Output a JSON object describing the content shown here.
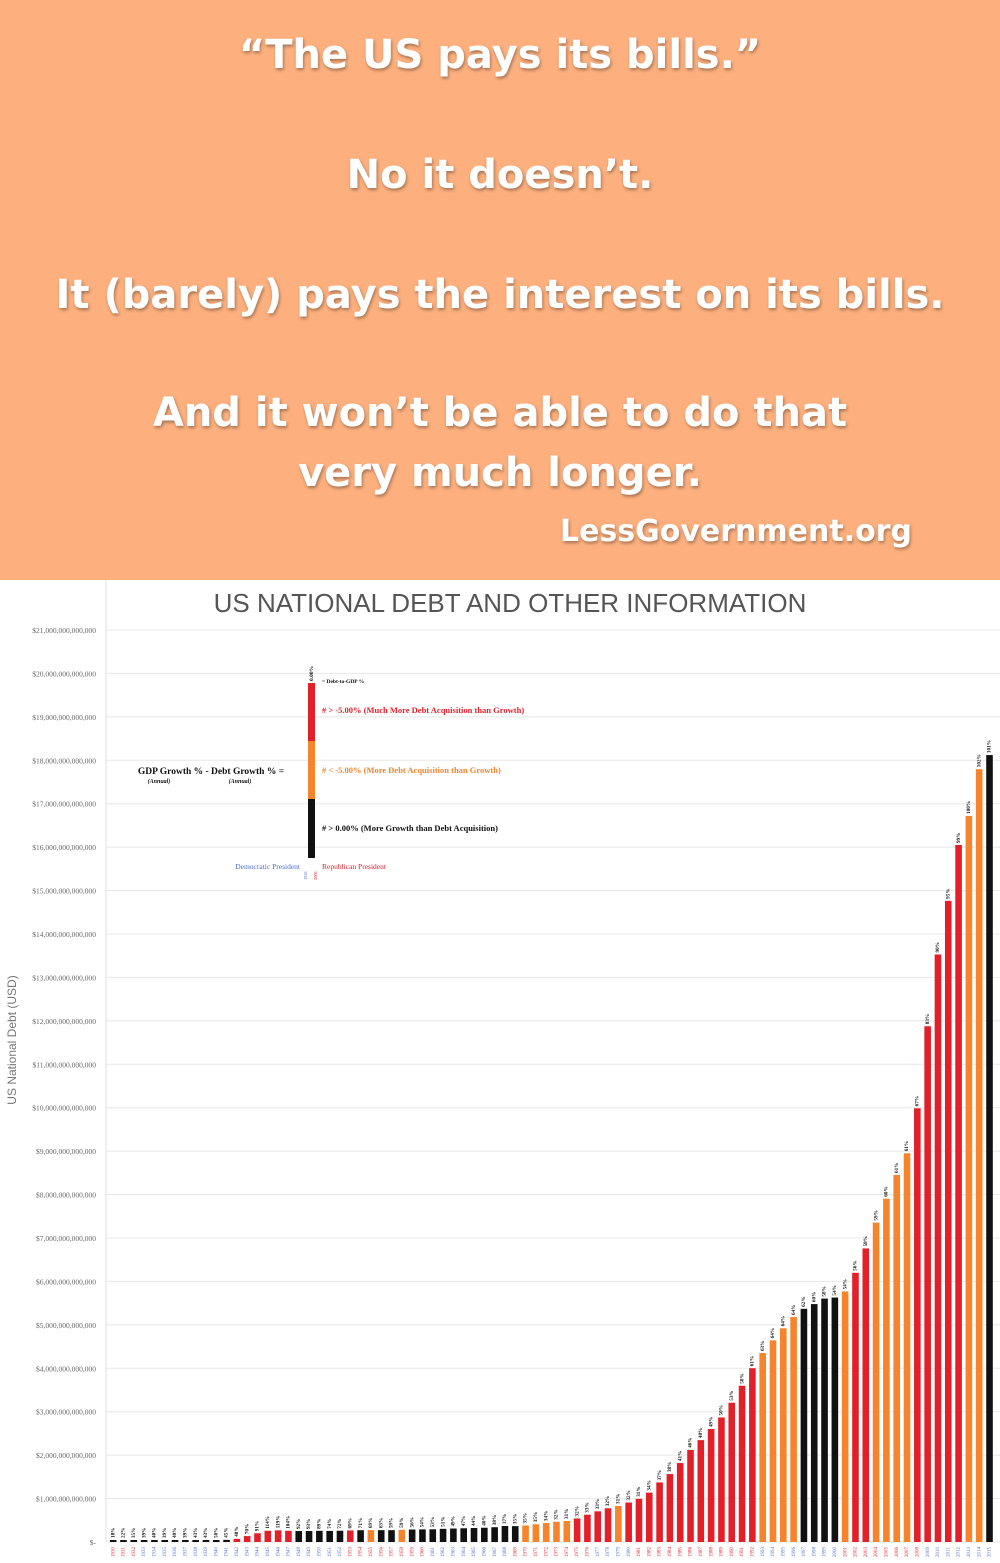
{
  "banner": {
    "line1": "“The US pays its bills.”",
    "line2": "No it doesn’t.",
    "line3": "It (barely) pays the interest on its bills.",
    "line4a": "And it won’t be able to do that",
    "line4b": "very much longer.",
    "brand": "LessGovernment.org",
    "bg_color": "#fdb07e",
    "text_color": "#ffffff"
  },
  "chart_data": {
    "type": "bar",
    "title": "US NATIONAL DEBT AND OTHER INFORMATION",
    "ylabel": "US National Debt (USD)",
    "xlabel": "",
    "ylim": [
      0,
      21000000000000
    ],
    "y_ticks": [
      0,
      1000000000000,
      2000000000000,
      3000000000000,
      4000000000000,
      5000000000000,
      6000000000000,
      7000000000000,
      8000000000000,
      9000000000000,
      10000000000000,
      11000000000000,
      12000000000000,
      13000000000000,
      14000000000000,
      15000000000000,
      16000000000000,
      17000000000000,
      18000000000000,
      19000000000000,
      20000000000000,
      21000000000000
    ],
    "y_tick_labels": [
      "$-",
      "$1,000,000,000,000",
      "$2,000,000,000,000",
      "$3,000,000,000,000",
      "$4,000,000,000,000",
      "$5,000,000,000,000",
      "$6,000,000,000,000",
      "$7,000,000,000,000",
      "$8,000,000,000,000",
      "$9,000,000,000,000",
      "$10,000,000,000,000",
      "$11,000,000,000,000",
      "$12,000,000,000,000",
      "$13,000,000,000,000",
      "$14,000,000,000,000",
      "$15,000,000,000,000",
      "$16,000,000,000,000",
      "$17,000,000,000,000",
      "$18,000,000,000,000",
      "$19,000,000,000,000",
      "$20,000,000,000,000",
      "$21,000,000,000,000"
    ],
    "grid": true,
    "colors": {
      "black": "#111111",
      "orange": "#f5842c",
      "red": "#e3202a",
      "dem": "#4a6fcc",
      "rep": "#e3202a",
      "grid": "#e8e8e8",
      "title": "#555555"
    },
    "categories": [
      "1930",
      "1931",
      "1932",
      "1933",
      "1934",
      "1935",
      "1936",
      "1937",
      "1938",
      "1939",
      "1940",
      "1941",
      "1942",
      "1943",
      "1944",
      "1945",
      "1946",
      "1947",
      "1948",
      "1949",
      "1950",
      "1951",
      "1952",
      "1953",
      "1954",
      "1955",
      "1956",
      "1957",
      "1958",
      "1959",
      "1960",
      "1961",
      "1962",
      "1963",
      "1964",
      "1965",
      "1966",
      "1967",
      "1968",
      "1969",
      "1970",
      "1971",
      "1972",
      "1973",
      "1974",
      "1975",
      "1976",
      "1977",
      "1978",
      "1979",
      "1980",
      "1981",
      "1982",
      "1983",
      "1984",
      "1985",
      "1986",
      "1987",
      "1988",
      "1989",
      "1990",
      "1991",
      "1992",
      "1993",
      "1994",
      "1995",
      "1996",
      "1997",
      "1998",
      "1999",
      "2000",
      "2001",
      "2002",
      "2003",
      "2004",
      "2005",
      "2006",
      "2007",
      "2008",
      "2009",
      "2010",
      "2011",
      "2012",
      "2013",
      "2014",
      "2015"
    ],
    "values": [
      16200000000,
      16800000000,
      19500000000,
      22500000000,
      27100000000,
      28700000000,
      33800000000,
      36400000000,
      37200000000,
      40400000000,
      43000000000,
      49000000000,
      72400000000,
      136700000000,
      201000000000,
      258700000000,
      269400000000,
      258300000000,
      252300000000,
      252800000000,
      257400000000,
      255200000000,
      259100000000,
      266100000000,
      271300000000,
      274400000000,
      272700000000,
      272300000000,
      279700000000,
      287500000000,
      290500000000,
      292600000000,
      302900000000,
      310300000000,
      316100000000,
      322300000000,
      328500000000,
      340400000000,
      368700000000,
      365800000000,
      380900000000,
      408200000000,
      435900000000,
      466300000000,
      483900000000,
      541900000000,
      629000000000,
      706400000000,
      776600000000,
      829500000000,
      909000000000,
      994800000000,
      1137300000000,
      1371700000000,
      1564600000000,
      1817400000000,
      2120500000000,
      2346000000000,
      2601100000000,
      2867800000000,
      3206300000000,
      3598200000000,
      4001800000000,
      4351000000000,
      4643300000000,
      4920600000000,
      5181500000000,
      5369200000000,
      5478200000000,
      5605500000000,
      5628700000000,
      5769900000000,
      6198400000000,
      6760000000000,
      7354700000000,
      7905300000000,
      8451400000000,
      8950700000000,
      9986100000000,
      11875900000000,
      13528800000000,
      14764200000000,
      16050900000000,
      16719400000000,
      17794500000000,
      18120100000000
    ],
    "bar_colors": [
      "black",
      "black",
      "black",
      "black",
      "black",
      "black",
      "black",
      "black",
      "black",
      "black",
      "black",
      "black",
      "red",
      "red",
      "red",
      "red",
      "red",
      "red",
      "black",
      "black",
      "black",
      "black",
      "black",
      "red",
      "black",
      "orange",
      "black",
      "black",
      "orange",
      "black",
      "black",
      "black",
      "black",
      "black",
      "black",
      "black",
      "black",
      "black",
      "black",
      "black",
      "orange",
      "orange",
      "orange",
      "orange",
      "orange",
      "red",
      "red",
      "red",
      "red",
      "orange",
      "red",
      "red",
      "red",
      "red",
      "red",
      "red",
      "red",
      "red",
      "red",
      "red",
      "red",
      "red",
      "red",
      "orange",
      "orange",
      "orange",
      "orange",
      "black",
      "black",
      "black",
      "black",
      "orange",
      "red",
      "red",
      "orange",
      "orange",
      "orange",
      "orange",
      "red",
      "red",
      "red",
      "red",
      "red",
      "orange",
      "orange",
      "black"
    ],
    "president_party": [
      "R",
      "R",
      "R",
      "D",
      "D",
      "D",
      "D",
      "D",
      "D",
      "D",
      "D",
      "D",
      "D",
      "D",
      "D",
      "D",
      "D",
      "D",
      "D",
      "D",
      "D",
      "D",
      "D",
      "R",
      "R",
      "R",
      "R",
      "R",
      "R",
      "R",
      "R",
      "D",
      "D",
      "D",
      "D",
      "D",
      "D",
      "D",
      "D",
      "R",
      "R",
      "R",
      "R",
      "R",
      "R",
      "R",
      "R",
      "D",
      "D",
      "D",
      "D",
      "R",
      "R",
      "R",
      "R",
      "R",
      "R",
      "R",
      "R",
      "R",
      "R",
      "R",
      "R",
      "D",
      "D",
      "D",
      "D",
      "D",
      "D",
      "D",
      "D",
      "R",
      "R",
      "R",
      "R",
      "R",
      "R",
      "R",
      "R",
      "D",
      "D",
      "D",
      "D",
      "D",
      "D",
      "D"
    ],
    "debt_to_gdp_labels": [
      "18%",
      "22%",
      "35%",
      "39%",
      "40%",
      "39%",
      "40%",
      "39%",
      "43%",
      "43%",
      "50%",
      "45%",
      "48%",
      "70%",
      "91%",
      "114%",
      "119%",
      "104%",
      "92%",
      "93%",
      "89%",
      "74%",
      "72%",
      "69%",
      "71%",
      "69%",
      "63%",
      "59%",
      "59%",
      "56%",
      "54%",
      "53%",
      "51%",
      "49%",
      "47%",
      "44%",
      "40%",
      "38%",
      "37%",
      "35%",
      "35%",
      "35%",
      "34%",
      "32%",
      "31%",
      "32%",
      "33%",
      "33%",
      "32%",
      "31%",
      "32%",
      "31%",
      "34%",
      "37%",
      "38%",
      "41%",
      "46%",
      "48%",
      "49%",
      "50%",
      "53%",
      "58%",
      "61%",
      "63%",
      "64%",
      "64%",
      "64%",
      "62%",
      "60%",
      "58%",
      "54%",
      "54%",
      "56%",
      "58%",
      "59%",
      "60%",
      "61%",
      "61%",
      "67%",
      "83%",
      "90%",
      "95%",
      "99%",
      "100%",
      "102%",
      "101%"
    ],
    "legend": {
      "title": "GDP Growth % - Debt Growth % =",
      "sub1": "(Annual)",
      "sub2": "(Annual)",
      "bar_label": "0.00%",
      "debt_to_gdp": "= Debt-to-GDP %",
      "red": "# > -5.00% (Much More Debt Acquisition than Growth)",
      "orange": "# < -5.00% (More Debt Acquisition than Growth)",
      "black": "# > 0.00% (More Growth than Debt Acquisition)",
      "dem": "Democratic President",
      "rep": "Republican President",
      "dem_year": "1941",
      "rep_year": "2001"
    }
  }
}
